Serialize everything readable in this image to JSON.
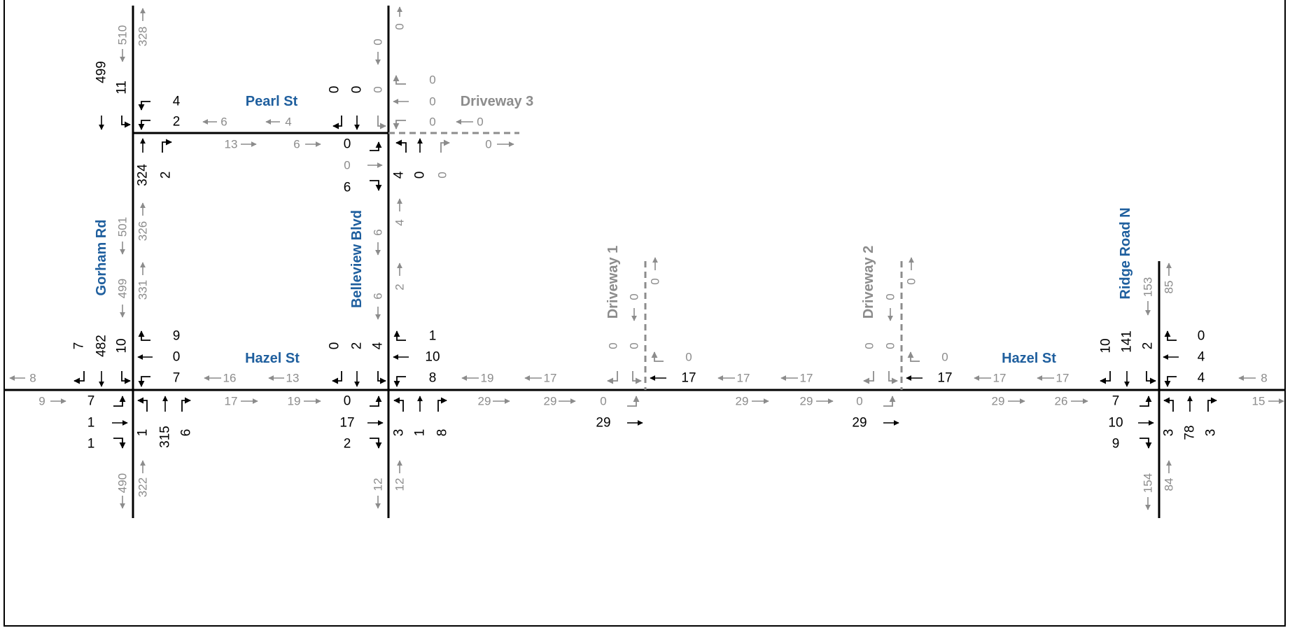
{
  "colors": {
    "road": "#000000",
    "driveway": "#8c8c8c",
    "volume_primary": "#000000",
    "volume_secondary": "#8c8c8c",
    "street_name": "#1f5f9e",
    "driveway_name": "#8c8c8c"
  },
  "streets": {
    "pearl": "Pearl St",
    "driveway3": "Driveway 3",
    "gorham": "Gorham Rd",
    "belleview": "Belleview Blvd",
    "driveway1": "Driveway 1",
    "driveway2": "Driveway 2",
    "ridge": "Ridge Road N",
    "hazel_w": "Hazel St",
    "hazel_e": "Hazel St"
  },
  "gorham_pearl": {
    "sb": [
      "499",
      "11"
    ],
    "wb": [
      "4",
      "2"
    ],
    "nb": [
      "324",
      "2"
    ],
    "north_leg": [
      "510",
      "328"
    ]
  },
  "pearl_link": {
    "wb": [
      "6",
      "4"
    ],
    "eb": [
      "13",
      "6"
    ]
  },
  "belleview_pearl": {
    "sb": [
      "0",
      "0",
      "0"
    ],
    "eb": [
      "0",
      "0",
      "6"
    ],
    "nb": [
      "4",
      "0",
      "0"
    ],
    "wb": [
      "0",
      "0",
      "0"
    ],
    "north_leg": [
      "0",
      "0"
    ],
    "east_leg": [
      "0",
      "0"
    ]
  },
  "belleview_link": [
    "6",
    "4",
    "6",
    "2"
  ],
  "gorham_link": [
    "501",
    "326",
    "499",
    "331"
  ],
  "gorham_hazel": {
    "sb": [
      "7",
      "482",
      "10"
    ],
    "wb": [
      "9",
      "0",
      "7"
    ],
    "eb": [
      "7",
      "1",
      "1"
    ],
    "nb": [
      "1",
      "315",
      "6"
    ],
    "west_leg": [
      "8",
      "9"
    ],
    "south_leg": [
      "490",
      "322"
    ]
  },
  "hazel_link_1": {
    "wb": [
      "16",
      "13"
    ],
    "eb": [
      "17",
      "19"
    ]
  },
  "belleview_hazel": {
    "sb": [
      "0",
      "2",
      "4"
    ],
    "eb": [
      "0",
      "17",
      "2"
    ],
    "wb": [
      "1",
      "10",
      "8"
    ],
    "nb": [
      "3",
      "1",
      "8"
    ],
    "south_leg": [
      "12",
      "12"
    ]
  },
  "hazel_link_2": {
    "wb": [
      "19",
      "17"
    ],
    "eb": [
      "29",
      "29"
    ]
  },
  "driveway1_hazel": {
    "sb": [
      "0",
      "0"
    ],
    "north_leg": [
      "0",
      "0"
    ],
    "wb": [
      "0",
      "17"
    ],
    "eb": [
      "0",
      "29"
    ]
  },
  "hazel_link_3": {
    "wb": [
      "17",
      "17"
    ],
    "eb": [
      "29",
      "29"
    ]
  },
  "driveway2_hazel": {
    "sb": [
      "0",
      "0"
    ],
    "north_leg": [
      "0",
      "0"
    ],
    "wb": [
      "0",
      "17"
    ],
    "eb": [
      "0",
      "29"
    ]
  },
  "hazel_link_4": {
    "wb": [
      "17",
      "17"
    ],
    "eb": [
      "29",
      "26"
    ]
  },
  "ridge_hazel": {
    "sb": [
      "10",
      "141",
      "2"
    ],
    "wb": [
      "0",
      "4",
      "4"
    ],
    "eb": [
      "7",
      "10",
      "9"
    ],
    "nb": [
      "3",
      "78",
      "3"
    ],
    "north_leg": [
      "153",
      "85"
    ],
    "south_leg": [
      "154",
      "84"
    ],
    "east_leg": [
      "8",
      "15"
    ]
  }
}
